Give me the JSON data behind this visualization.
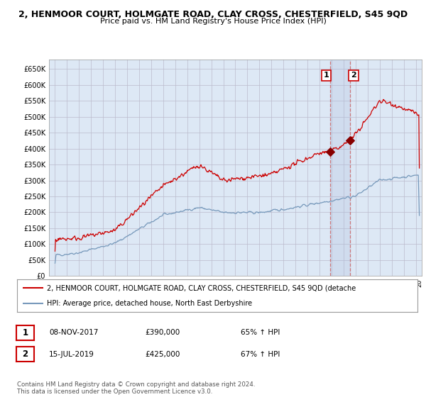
{
  "title": "2, HENMOOR COURT, HOLMGATE ROAD, CLAY CROSS, CHESTERFIELD, S45 9QD",
  "subtitle": "Price paid vs. HM Land Registry's House Price Index (HPI)",
  "title_fontsize": 9.0,
  "subtitle_fontsize": 8.0,
  "ylim": [
    0,
    680000
  ],
  "yticks": [
    0,
    50000,
    100000,
    150000,
    200000,
    250000,
    300000,
    350000,
    400000,
    450000,
    500000,
    550000,
    600000,
    650000
  ],
  "ytick_labels": [
    "£0",
    "£50K",
    "£100K",
    "£150K",
    "£200K",
    "£250K",
    "£300K",
    "£350K",
    "£400K",
    "£450K",
    "£500K",
    "£550K",
    "£600K",
    "£650K"
  ],
  "xlim_start": 1994.5,
  "xlim_end": 2025.5,
  "red_color": "#cc0000",
  "blue_color": "#7799bb",
  "sale1_date_num": 2017.86,
  "sale1_price": 390000,
  "sale2_date_num": 2019.54,
  "sale2_price": 425000,
  "legend_line1": "2, HENMOOR COURT, HOLMGATE ROAD, CLAY CROSS, CHESTERFIELD, S45 9QD (detache",
  "legend_line2": "HPI: Average price, detached house, North East Derbyshire",
  "table_row1_num": "1",
  "table_row1_date": "08-NOV-2017",
  "table_row1_price": "£390,000",
  "table_row1_hpi": "65% ↑ HPI",
  "table_row2_num": "2",
  "table_row2_date": "15-JUL-2019",
  "table_row2_price": "£425,000",
  "table_row2_hpi": "67% ↑ HPI",
  "footer": "Contains HM Land Registry data © Crown copyright and database right 2024.\nThis data is licensed under the Open Government Licence v3.0.",
  "bg_color": "#ffffff",
  "grid_color": "#bbbbcc",
  "plot_bg": "#dde8f5"
}
